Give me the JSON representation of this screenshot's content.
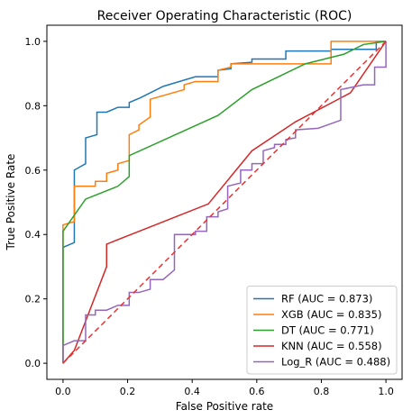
{
  "chart_data": {
    "type": "line",
    "title": "Receiver Operating Characteristic (ROC)",
    "xlabel": "False Positive rate",
    "ylabel": "True Positive Rate",
    "xlim": [
      -0.05,
      1.05
    ],
    "ylim": [
      -0.05,
      1.05
    ],
    "xticks": [
      0.0,
      0.2,
      0.4,
      0.6,
      0.8,
      1.0
    ],
    "yticks": [
      0.0,
      0.2,
      0.4,
      0.6,
      0.8,
      1.0
    ],
    "xtick_labels": [
      "0.0",
      "0.2",
      "0.4",
      "0.6",
      "0.8",
      "1.0"
    ],
    "ytick_labels": [
      "0.0",
      "0.2",
      "0.4",
      "0.6",
      "0.8",
      "1.0"
    ],
    "grid": false,
    "legend_position": "lower-right",
    "series": [
      {
        "name": "RF (AUC = 0.873)",
        "color": "#1f77b4",
        "points": [
          [
            0,
            0
          ],
          [
            0,
            0.36
          ],
          [
            0.035,
            0.375
          ],
          [
            0.035,
            0.6
          ],
          [
            0.07,
            0.62
          ],
          [
            0.07,
            0.7
          ],
          [
            0.105,
            0.71
          ],
          [
            0.105,
            0.78
          ],
          [
            0.135,
            0.78
          ],
          [
            0.17,
            0.795
          ],
          [
            0.205,
            0.795
          ],
          [
            0.205,
            0.81
          ],
          [
            0.24,
            0.825
          ],
          [
            0.31,
            0.86
          ],
          [
            0.41,
            0.89
          ],
          [
            0.48,
            0.89
          ],
          [
            0.48,
            0.91
          ],
          [
            0.52,
            0.915
          ],
          [
            0.52,
            0.93
          ],
          [
            0.585,
            0.935
          ],
          [
            0.585,
            0.945
          ],
          [
            0.69,
            0.945
          ],
          [
            0.69,
            0.97
          ],
          [
            0.83,
            0.97
          ],
          [
            0.83,
            0.975
          ],
          [
            0.97,
            0.975
          ],
          [
            0.97,
            1.0
          ],
          [
            1.0,
            1.0
          ]
        ]
      },
      {
        "name": "XGB (AUC = 0.835)",
        "color": "#ff7f0e",
        "points": [
          [
            0,
            0
          ],
          [
            0,
            0.43
          ],
          [
            0.035,
            0.44
          ],
          [
            0.035,
            0.55
          ],
          [
            0.1,
            0.55
          ],
          [
            0.1,
            0.565
          ],
          [
            0.135,
            0.565
          ],
          [
            0.135,
            0.59
          ],
          [
            0.17,
            0.6
          ],
          [
            0.17,
            0.62
          ],
          [
            0.205,
            0.63
          ],
          [
            0.205,
            0.71
          ],
          [
            0.235,
            0.725
          ],
          [
            0.235,
            0.74
          ],
          [
            0.27,
            0.765
          ],
          [
            0.27,
            0.82
          ],
          [
            0.375,
            0.85
          ],
          [
            0.375,
            0.865
          ],
          [
            0.41,
            0.875
          ],
          [
            0.48,
            0.875
          ],
          [
            0.48,
            0.91
          ],
          [
            0.52,
            0.92
          ],
          [
            0.52,
            0.93
          ],
          [
            0.83,
            0.93
          ],
          [
            0.83,
            1.0
          ],
          [
            1.0,
            1.0
          ]
        ]
      },
      {
        "name": "DT (AUC = 0.771)",
        "color": "#2ca02c",
        "points": [
          [
            0,
            0
          ],
          [
            0,
            0.41
          ],
          [
            0.07,
            0.51
          ],
          [
            0.17,
            0.55
          ],
          [
            0.205,
            0.58
          ],
          [
            0.205,
            0.645
          ],
          [
            0.48,
            0.77
          ],
          [
            0.585,
            0.85
          ],
          [
            0.75,
            0.93
          ],
          [
            0.87,
            0.96
          ],
          [
            0.93,
            0.99
          ],
          [
            1.0,
            1.0
          ]
        ]
      },
      {
        "name": "KNN (AUC = 0.558)",
        "color": "#d62728",
        "points": [
          [
            0,
            0
          ],
          [
            0.035,
            0.04
          ],
          [
            0.135,
            0.3
          ],
          [
            0.135,
            0.37
          ],
          [
            0.45,
            0.495
          ],
          [
            0.585,
            0.66
          ],
          [
            0.72,
            0.75
          ],
          [
            0.89,
            0.84
          ],
          [
            1.0,
            1.0
          ]
        ]
      },
      {
        "name": "Log_R (AUC = 0.488)",
        "color": "#9467bd",
        "points": [
          [
            0,
            0
          ],
          [
            0,
            0.055
          ],
          [
            0.035,
            0.07
          ],
          [
            0.07,
            0.07
          ],
          [
            0.07,
            0.15
          ],
          [
            0.1,
            0.15
          ],
          [
            0.1,
            0.165
          ],
          [
            0.135,
            0.165
          ],
          [
            0.17,
            0.18
          ],
          [
            0.205,
            0.18
          ],
          [
            0.205,
            0.22
          ],
          [
            0.235,
            0.22
          ],
          [
            0.27,
            0.23
          ],
          [
            0.27,
            0.26
          ],
          [
            0.31,
            0.26
          ],
          [
            0.345,
            0.29
          ],
          [
            0.345,
            0.4
          ],
          [
            0.41,
            0.4
          ],
          [
            0.41,
            0.41
          ],
          [
            0.445,
            0.41
          ],
          [
            0.445,
            0.455
          ],
          [
            0.48,
            0.455
          ],
          [
            0.48,
            0.47
          ],
          [
            0.51,
            0.48
          ],
          [
            0.51,
            0.55
          ],
          [
            0.55,
            0.56
          ],
          [
            0.55,
            0.6
          ],
          [
            0.585,
            0.6
          ],
          [
            0.585,
            0.62
          ],
          [
            0.62,
            0.62
          ],
          [
            0.62,
            0.66
          ],
          [
            0.655,
            0.67
          ],
          [
            0.655,
            0.68
          ],
          [
            0.69,
            0.68
          ],
          [
            0.69,
            0.695
          ],
          [
            0.72,
            0.7
          ],
          [
            0.72,
            0.725
          ],
          [
            0.79,
            0.73
          ],
          [
            0.86,
            0.755
          ],
          [
            0.86,
            0.85
          ],
          [
            0.93,
            0.865
          ],
          [
            0.965,
            0.865
          ],
          [
            0.965,
            0.92
          ],
          [
            1.0,
            0.92
          ],
          [
            1.0,
            1.0
          ]
        ]
      }
    ],
    "reference_line": {
      "color": "#e8312f",
      "style": "dashed",
      "points": [
        [
          0,
          0
        ],
        [
          1,
          1
        ]
      ]
    }
  }
}
